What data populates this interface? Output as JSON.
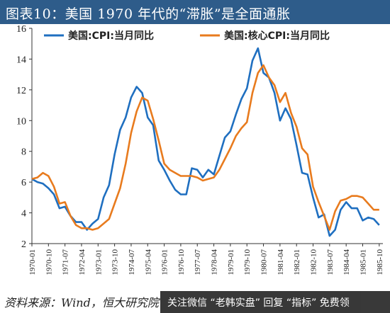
{
  "title": "图表10：美国 1970 年代的“滞胀”是全面通胀",
  "source": "资料来源：Wind，恒大研究院",
  "banner": "关注微信 “老韩实盘” 回复 “指标” 免费领",
  "colors": {
    "title_bg": "#2e5c8a",
    "cpi": "#1f6fc0",
    "core": "#e87b1e"
  },
  "chart_data": {
    "type": "line",
    "title": "",
    "xlabel": "",
    "ylabel": "",
    "ylim": [
      2,
      16
    ],
    "yticks": [
      "2",
      "4",
      "6",
      "8",
      "10",
      "12",
      "14",
      "16"
    ],
    "xticks": [
      "1970-01",
      "1970-10",
      "1971-07",
      "1972-04",
      "1973-01",
      "1973-10",
      "1974-07",
      "1975-04",
      "1976-01",
      "1976-10",
      "1977-07",
      "1978-04",
      "1979-01",
      "1979-10",
      "1980-07",
      "1981-04",
      "1982-01",
      "1982-10",
      "1983-07",
      "1984-04",
      "1985-01",
      "1985-10"
    ],
    "grid": false,
    "legend_position": "top",
    "series": [
      {
        "name": "美国:CPI:当月同比",
        "x": [
          "1970-01",
          "1970-04",
          "1970-07",
          "1970-10",
          "1971-01",
          "1971-04",
          "1971-07",
          "1971-10",
          "1972-01",
          "1972-04",
          "1972-07",
          "1972-10",
          "1973-01",
          "1973-04",
          "1973-07",
          "1973-10",
          "1974-01",
          "1974-04",
          "1974-07",
          "1974-10",
          "1975-01",
          "1975-04",
          "1975-07",
          "1975-10",
          "1976-01",
          "1976-04",
          "1976-07",
          "1976-10",
          "1977-01",
          "1977-04",
          "1977-07",
          "1977-10",
          "1978-01",
          "1978-04",
          "1978-07",
          "1978-10",
          "1979-01",
          "1979-04",
          "1979-07",
          "1979-10",
          "1980-01",
          "1980-04",
          "1980-07",
          "1980-10",
          "1981-01",
          "1981-04",
          "1981-07",
          "1981-10",
          "1982-01",
          "1982-04",
          "1982-07",
          "1982-10",
          "1983-01",
          "1983-04",
          "1983-07",
          "1983-10",
          "1984-01",
          "1984-04",
          "1984-07",
          "1984-10",
          "1985-01",
          "1985-04",
          "1985-07",
          "1985-10"
        ],
        "values": [
          6.2,
          6.0,
          5.9,
          5.6,
          5.2,
          4.3,
          4.4,
          3.8,
          3.4,
          3.4,
          2.9,
          3.3,
          3.6,
          5.0,
          5.8,
          7.8,
          9.4,
          10.2,
          11.5,
          12.2,
          11.8,
          10.2,
          9.7,
          7.4,
          6.8,
          6.1,
          5.5,
          5.2,
          5.2,
          6.9,
          6.8,
          6.3,
          6.8,
          6.5,
          7.7,
          8.9,
          9.3,
          10.4,
          11.4,
          12.1,
          13.9,
          14.7,
          13.1,
          12.8,
          11.8,
          10.0,
          10.8,
          10.1,
          8.4,
          6.6,
          6.5,
          5.0,
          3.7,
          3.9,
          2.5,
          2.9,
          4.2,
          4.7,
          4.3,
          4.3,
          3.5,
          3.7,
          3.6,
          3.2
        ]
      },
      {
        "name": "美国:核心CPI:当月同比",
        "x": [
          "1970-01",
          "1970-04",
          "1970-07",
          "1970-10",
          "1971-01",
          "1971-04",
          "1971-07",
          "1971-10",
          "1972-01",
          "1972-04",
          "1972-07",
          "1972-10",
          "1973-01",
          "1973-04",
          "1973-07",
          "1973-10",
          "1974-01",
          "1974-04",
          "1974-07",
          "1974-10",
          "1975-01",
          "1975-04",
          "1975-07",
          "1975-10",
          "1976-01",
          "1976-04",
          "1976-07",
          "1976-10",
          "1977-01",
          "1977-04",
          "1977-07",
          "1977-10",
          "1978-01",
          "1978-04",
          "1978-07",
          "1978-10",
          "1979-01",
          "1979-04",
          "1979-07",
          "1979-10",
          "1980-01",
          "1980-04",
          "1980-07",
          "1980-10",
          "1981-01",
          "1981-04",
          "1981-07",
          "1981-10",
          "1982-01",
          "1982-04",
          "1982-07",
          "1982-10",
          "1983-01",
          "1983-04",
          "1983-07",
          "1983-10",
          "1984-01",
          "1984-04",
          "1984-07",
          "1984-10",
          "1985-01",
          "1985-04",
          "1985-07",
          "1985-10"
        ],
        "values": [
          6.2,
          6.3,
          6.6,
          6.4,
          5.7,
          4.6,
          4.7,
          3.8,
          3.2,
          3.0,
          3.0,
          2.9,
          3.0,
          3.3,
          3.6,
          4.6,
          5.6,
          7.2,
          9.2,
          10.6,
          11.5,
          11.3,
          10.1,
          8.7,
          7.2,
          6.8,
          6.6,
          6.4,
          6.4,
          6.4,
          6.3,
          6.1,
          6.2,
          6.3,
          6.8,
          7.5,
          8.2,
          9.0,
          9.5,
          9.9,
          11.8,
          13.1,
          13.6,
          12.8,
          12.3,
          11.2,
          11.8,
          10.5,
          9.6,
          8.2,
          7.8,
          5.7,
          4.7,
          3.8,
          2.9,
          4.1,
          4.8,
          4.9,
          5.1,
          5.1,
          5.0,
          4.6,
          4.2,
          4.2
        ]
      }
    ]
  }
}
